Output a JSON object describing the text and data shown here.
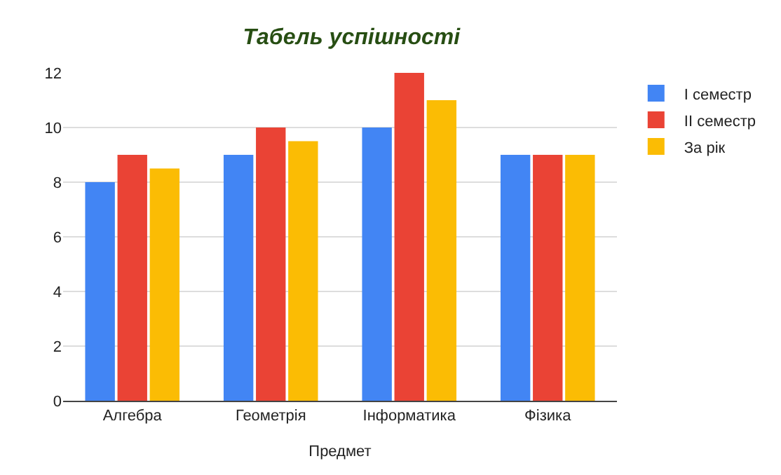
{
  "chart_data": {
    "type": "bar",
    "title": "Табель успішності",
    "xlabel": "Предмет",
    "categories": [
      "Алгебра",
      "Геометрія",
      "Інформатика",
      "Фізика"
    ],
    "series": [
      {
        "name": "I семестр",
        "color": "#4285f4",
        "values": [
          8,
          9,
          10,
          9
        ]
      },
      {
        "name": "II семестр",
        "color": "#ea4335",
        "values": [
          9,
          10,
          12,
          9
        ]
      },
      {
        "name": "За рік",
        "color": "#fbbc04",
        "values": [
          8.5,
          9.5,
          11,
          9
        ]
      }
    ],
    "ylim": [
      0,
      12
    ],
    "yticks": [
      0,
      2,
      4,
      6,
      8,
      10,
      12
    ],
    "grid": "y",
    "legend": "top right"
  }
}
